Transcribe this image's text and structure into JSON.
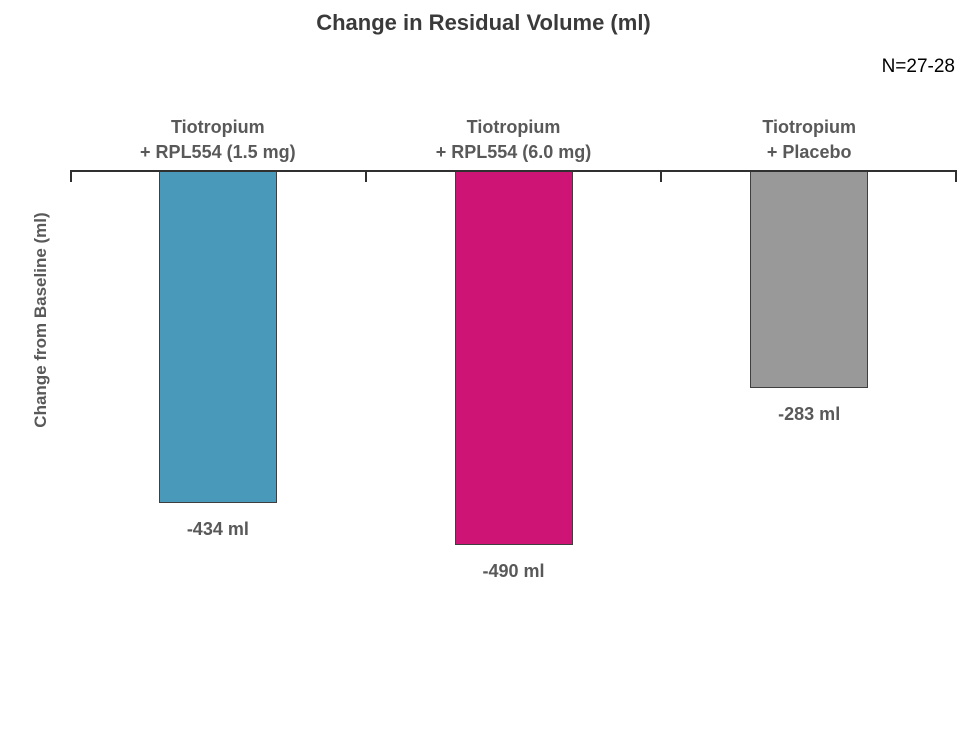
{
  "page": {
    "title": "Change in Residual Volume (ml)",
    "sample_note": "N=27-28"
  },
  "chart_data": {
    "type": "bar",
    "title": "Change in Residual Volume (ml)",
    "annotation": "N=27-28",
    "ylabel": "Change from Baseline (ml)",
    "xlabel": "",
    "categories": [
      "Tiotropium + RPL554 (1.5 mg)",
      "Tiotropium + RPL554 (6.0 mg)",
      "Tiotropium + Placebo"
    ],
    "category_lines": [
      [
        "Tiotropium",
        "+ RPL554 (1.5 mg)"
      ],
      [
        "Tiotropium",
        "+ RPL554 (6.0 mg)"
      ],
      [
        "Tiotropium",
        "+ Placebo"
      ]
    ],
    "values": [
      -434,
      -490,
      -283
    ],
    "value_labels": [
      "-434 ml",
      "-490 ml",
      "-283 ml"
    ],
    "unit": "ml",
    "bar_colors": [
      "#4999BA",
      "#CE1576",
      "#999999"
    ],
    "bar_border_color": "#3f3f3f",
    "axis_color": "#303030",
    "label_color": "#595959",
    "ylim": [
      -520,
      0
    ],
    "baseline": "top",
    "grid": false,
    "legend_position": "none"
  }
}
